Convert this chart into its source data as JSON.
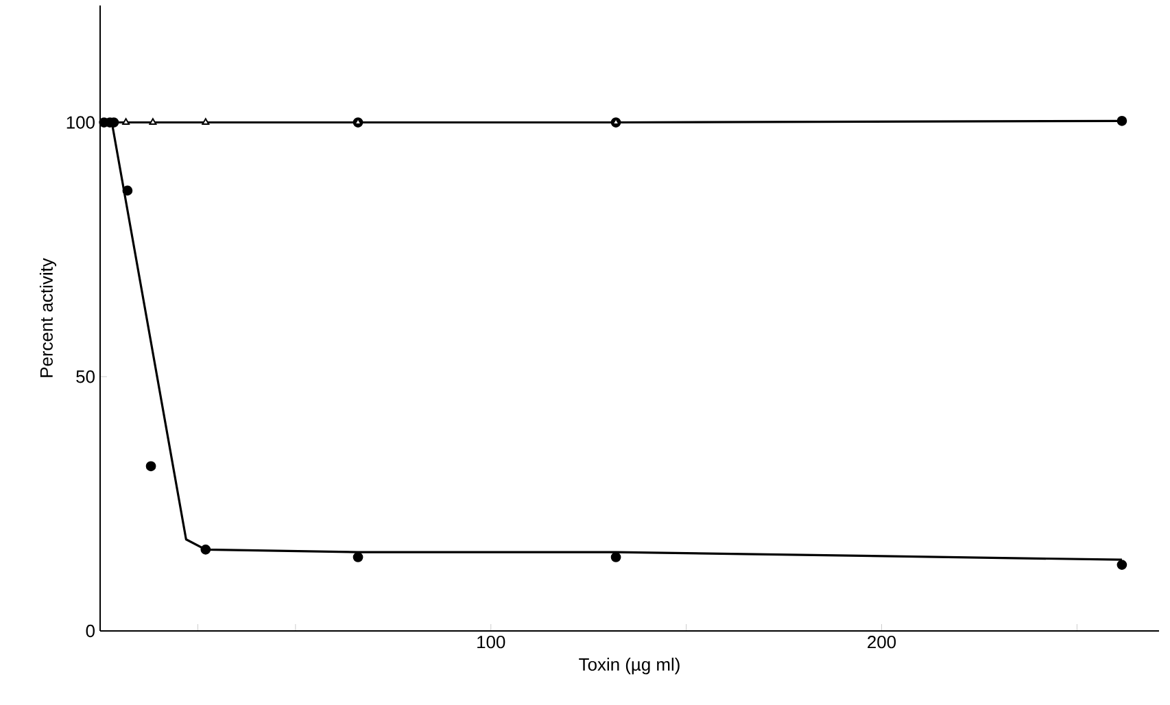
{
  "chart_data": {
    "type": "scatter",
    "xlabel": "Toxin (µg ml)",
    "ylabel": "Percent activity",
    "xlim": [
      0,
      271
    ],
    "ylim": [
      0,
      123
    ],
    "xticks": [
      {
        "value": 25,
        "label": null
      },
      {
        "value": 50,
        "label": null
      },
      100,
      {
        "value": 150,
        "label": null
      },
      200,
      {
        "value": 250,
        "label": null
      }
    ],
    "yticks": [
      0,
      50,
      100
    ],
    "grid": false,
    "series": [
      {
        "type": "line",
        "color": "#000000",
        "marker": "none",
        "x": [
          3,
          22,
          27,
          66,
          132,
          261.5
        ],
        "values": [
          100,
          18,
          16,
          15.5,
          15.5,
          14
        ]
      },
      {
        "type": "line",
        "color": "#000000",
        "marker": "none",
        "x": [
          0,
          66,
          132,
          261.5
        ],
        "values": [
          100,
          100,
          100,
          100.3
        ]
      },
      {
        "color": "#000000",
        "marker": "circle",
        "x": [
          1,
          2.5,
          66,
          132,
          261.5
        ],
        "values": [
          100,
          100,
          100,
          100,
          100.3
        ]
      },
      {
        "color": "#000000",
        "marker": "triangle",
        "x": [
          6.6,
          13.5,
          27,
          66,
          132
        ],
        "values": [
          100,
          100,
          100,
          100,
          100
        ]
      },
      {
        "color": "#000000",
        "marker": "circle",
        "x": [
          3.5,
          7,
          13,
          27,
          66,
          132,
          261.5
        ],
        "values": [
          100,
          86.6,
          32.4,
          16,
          14.5,
          14.5,
          13
        ]
      }
    ]
  }
}
